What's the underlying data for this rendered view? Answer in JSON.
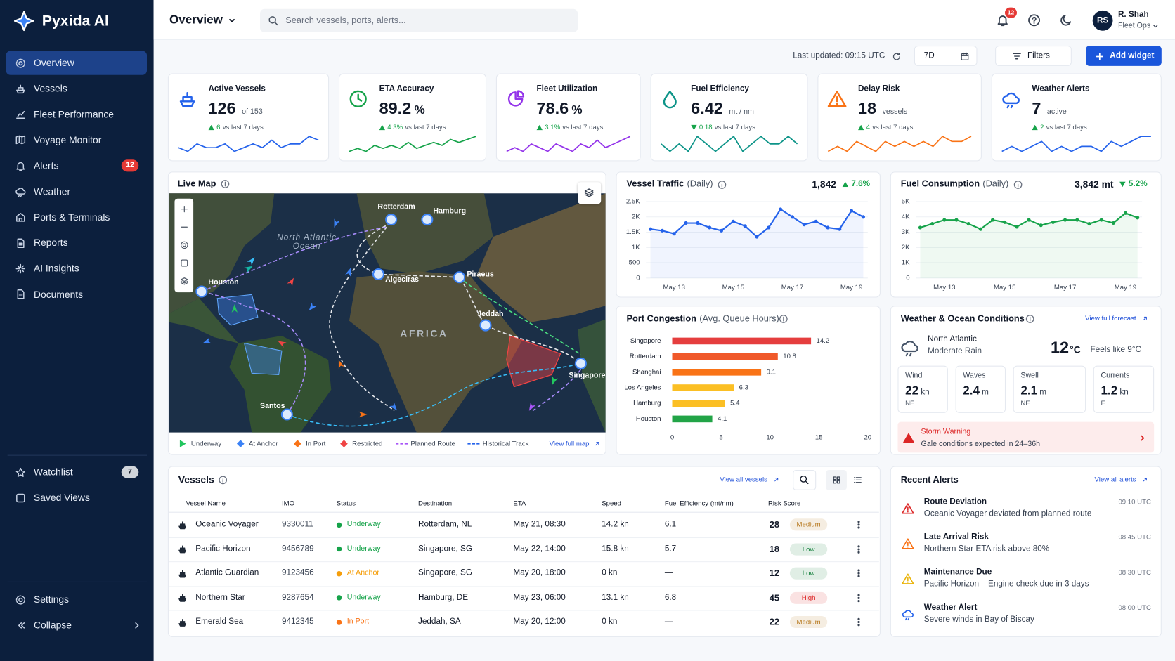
{
  "sidebar": {
    "brand": "Pyxida AI",
    "nav": [
      {
        "label": "Overview",
        "active": true
      },
      {
        "label": "Vessels"
      },
      {
        "label": "Fleet Performance"
      },
      {
        "label": "Voyage Monitor"
      },
      {
        "label": "Alerts",
        "badge": 12
      },
      {
        "label": "Weather"
      },
      {
        "label": "Ports & Terminals"
      },
      {
        "label": "Reports"
      },
      {
        "label": "AI Insights"
      },
      {
        "label": "Documents"
      }
    ],
    "saved": [
      {
        "label": "Watchlist",
        "badge": 7
      },
      {
        "label": "Saved Views"
      }
    ],
    "footer": [
      {
        "label": "Settings"
      },
      {
        "label": "Collapse"
      }
    ]
  },
  "header": {
    "title": "Overview",
    "search_placeholder": "Search vessels, ports, alerts...",
    "notification_count": 12,
    "user_initials": "RS",
    "user_name": "R. Shah",
    "user_role": "Fleet Ops"
  },
  "toolbar": {
    "last_updated": "Last updated: 09:15 UTC",
    "range": "7D",
    "filters": "Filters",
    "add_widget": "Add widget"
  },
  "kpis": [
    {
      "title": "Active Vessels",
      "value": 126,
      "unit": "of 153",
      "delta": "6",
      "delta_note": "vs last 7 days",
      "trend": "up",
      "delta_color": "#16a34a",
      "color": "#2563eb",
      "spark": [
        6,
        5,
        7,
        6,
        6,
        7,
        5,
        6,
        7,
        6,
        8,
        6,
        7,
        7,
        9,
        8
      ]
    },
    {
      "title": "ETA Accuracy",
      "value": 89.2,
      "unit": "%",
      "delta": "4.3%",
      "delta_note": "vs last 7 days",
      "trend": "up",
      "delta_color": "#16a34a",
      "color": "#16a34a",
      "spark": [
        4,
        5,
        4,
        6,
        5,
        6,
        5,
        7,
        5,
        6,
        7,
        6,
        8,
        7,
        8,
        9
      ]
    },
    {
      "title": "Fleet Utilization",
      "value": 78.6,
      "unit": "%",
      "delta": "3.1%",
      "delta_note": "vs last 7 days",
      "trend": "up",
      "delta_color": "#16a34a",
      "color": "#9333ea",
      "spark": [
        5,
        6,
        5,
        7,
        6,
        5,
        7,
        6,
        5,
        7,
        6,
        8,
        6,
        7,
        8,
        9
      ]
    },
    {
      "title": "Fuel Efficiency",
      "value": 6.42,
      "unit": "mt / nm",
      "delta": "0.18",
      "delta_note": "vs last 7 days",
      "trend": "down",
      "delta_color": "#16a34a",
      "color": "#0d9488",
      "spark": [
        6,
        5,
        6,
        5,
        7,
        6,
        5,
        6,
        7,
        5,
        6,
        7,
        6,
        6,
        7,
        6
      ]
    },
    {
      "title": "Delay Risk",
      "value": 18,
      "unit": "vessels",
      "delta": "4",
      "delta_note": "vs last 7 days",
      "trend": "up",
      "delta_color": "#16a34a",
      "color": "#f97316",
      "spark": [
        4,
        5,
        4,
        6,
        5,
        4,
        6,
        5,
        6,
        5,
        6,
        5,
        7,
        6,
        6,
        7
      ]
    },
    {
      "title": "Weather Alerts",
      "value": 7,
      "unit": "active",
      "delta": "2",
      "delta_note": "vs last 7 days",
      "trend": "up",
      "delta_color": "#16a34a",
      "color": "#2563eb",
      "spark": [
        5,
        6,
        5,
        6,
        7,
        5,
        6,
        5,
        6,
        6,
        5,
        7,
        6,
        7,
        8,
        8
      ]
    }
  ],
  "live_map": {
    "title": "Live Map",
    "ocean_label": "North Atlantic Ocean",
    "continent_label": "AFRICA",
    "ports": [
      "Rotterdam",
      "Hamburg",
      "Houston",
      "Algeciras",
      "Piraeus",
      "Jeddah",
      "Singapore",
      "Santos"
    ],
    "legend": [
      {
        "label": "Underway",
        "color": "#22c55e"
      },
      {
        "label": "At Anchor",
        "color": "#3b82f6"
      },
      {
        "label": "In Port",
        "color": "#f97316"
      },
      {
        "label": "Restricted",
        "color": "#ef4444"
      },
      {
        "label": "Planned Route",
        "color": "#a855f7"
      },
      {
        "label": "Historical Track",
        "color": "#2563eb"
      }
    ],
    "link": "View full map"
  },
  "chart_data": [
    {
      "type": "line",
      "title": "Vessel Traffic",
      "subtitle": "(Daily)",
      "total": "1,842",
      "delta": "7.6%",
      "trend": "up",
      "delta_color": "#16a34a",
      "color": "#2563eb",
      "categories": [
        null,
        null,
        "May 13",
        null,
        null,
        null,
        null,
        "May 15",
        null,
        null,
        null,
        null,
        "May 17",
        null,
        null,
        null,
        null,
        "May 19",
        null
      ],
      "values": [
        1600,
        1550,
        1450,
        1800,
        1800,
        1650,
        1550,
        1850,
        1700,
        1350,
        1650,
        2250,
        2000,
        1750,
        1850,
        1650,
        1600,
        2200,
        2000
      ],
      "ylim": [
        0,
        2500
      ],
      "yticks": [
        0,
        500,
        {
          "value": 1000,
          "label": "1K"
        },
        {
          "value": 1500,
          "label": "1.5K"
        },
        {
          "value": 2000,
          "label": "2K"
        },
        {
          "value": 2500,
          "label": "2.5K"
        }
      ],
      "grid": true
    },
    {
      "type": "line",
      "title": "Fuel Consumption",
      "subtitle": "(Daily)",
      "total": "3,842 mt",
      "delta": "5.2%",
      "trend": "down",
      "delta_color": "#16a34a",
      "color": "#16a34a",
      "categories": [
        null,
        null,
        "May 13",
        null,
        null,
        null,
        null,
        "May 15",
        null,
        null,
        null,
        null,
        "May 17",
        null,
        null,
        null,
        null,
        "May 19",
        null
      ],
      "values": [
        3300,
        3550,
        3800,
        3800,
        3550,
        3200,
        3800,
        3650,
        3350,
        3800,
        3450,
        3650,
        3800,
        3800,
        3550,
        3800,
        3600,
        4250,
        3950
      ],
      "ylim": [
        0,
        5000
      ],
      "yticks": [
        0,
        {
          "value": 1000,
          "label": "1K"
        },
        {
          "value": 2000,
          "label": "2K"
        },
        {
          "value": 3000,
          "label": "3K"
        },
        {
          "value": 4000,
          "label": "4K"
        },
        {
          "value": 5000,
          "label": "5K"
        }
      ],
      "grid": true
    },
    {
      "type": "bar",
      "orientation": "horizontal",
      "title": "Port Congestion",
      "subtitle": "(Avg. Queue Hours)",
      "categories": [
        "Singapore",
        "Rotterdam",
        "Shanghai",
        "Los Angeles",
        "Hamburg",
        "Houston"
      ],
      "values": [
        14.2,
        10.8,
        9.1,
        6.3,
        5.4,
        4.1
      ],
      "colors": [
        "#e53e3e",
        "#f0592a",
        "#f97316",
        "#fbbf24",
        "#fbbf24",
        "#22a447"
      ],
      "xlim": [
        0,
        20
      ],
      "xticks": [
        0,
        5,
        10,
        15,
        20
      ]
    }
  ],
  "weather": {
    "title": "Weather & Ocean Conditions",
    "link": "View full forecast",
    "location": "North Atlantic",
    "condition": "Moderate Rain",
    "temp": 12,
    "temp_unit": "°C",
    "feels_like": "Feels like 9°C",
    "tiles": [
      {
        "label": "Wind",
        "value": 22,
        "unit": "kn",
        "dir": "NE"
      },
      {
        "label": "Waves",
        "value": 2.4,
        "unit": "m"
      },
      {
        "label": "Swell",
        "value": 2.1,
        "unit": "m",
        "dir": "NE"
      },
      {
        "label": "Currents",
        "value": 1.2,
        "unit": "kn",
        "dir": "E"
      }
    ],
    "warning_title": "Storm Warning",
    "warning_text": "Gale conditions expected in 24–36h"
  },
  "vessels": {
    "title": "Vessels",
    "link": "View all vessels",
    "columns": [
      "Vessel Name",
      "IMO",
      "Status",
      "Destination",
      "ETA",
      "Speed",
      "Fuel Efficiency (mt/nm)",
      "Risk Score"
    ],
    "rows": [
      {
        "name": "Oceanic Voyager",
        "imo": "9330011",
        "status": "Underway",
        "status_color": "#16a34a",
        "destination": "Rotterdam, NL",
        "eta": "May 21, 08:30",
        "speed": "14.2 kn",
        "fuel": "6.1",
        "risk": 28,
        "risk_label": "Medium",
        "risk_color": "#b7791f"
      },
      {
        "name": "Pacific Horizon",
        "imo": "9456789",
        "status": "Underway",
        "status_color": "#16a34a",
        "destination": "Singapore, SG",
        "eta": "May 22, 14:00",
        "speed": "15.8 kn",
        "fuel": "5.7",
        "risk": 18,
        "risk_label": "Low",
        "risk_color": "#15803d"
      },
      {
        "name": "Atlantic Guardian",
        "imo": "9123456",
        "status": "At Anchor",
        "status_color": "#f59e0b",
        "destination": "Singapore, SG",
        "eta": "May 20, 18:00",
        "speed": "0 kn",
        "fuel": "—",
        "risk": 12,
        "risk_label": "Low",
        "risk_color": "#15803d"
      },
      {
        "name": "Northern Star",
        "imo": "9287654",
        "status": "Underway",
        "status_color": "#16a34a",
        "destination": "Hamburg, DE",
        "eta": "May 23, 06:00",
        "speed": "13.1 kn",
        "fuel": "6.8",
        "risk": 45,
        "risk_label": "High",
        "risk_color": "#dc2626"
      },
      {
        "name": "Emerald Sea",
        "imo": "9412345",
        "status": "In Port",
        "status_color": "#f97316",
        "destination": "Jeddah, SA",
        "eta": "May 20, 12:00",
        "speed": "0 kn",
        "fuel": "—",
        "risk": 22,
        "risk_label": "Medium",
        "risk_color": "#b7791f"
      }
    ]
  },
  "alerts": {
    "title": "Recent Alerts",
    "link": "View all alerts",
    "items": [
      {
        "title": "Route Deviation",
        "text": "Oceanic Voyager deviated from planned route",
        "time": "09:10 UTC",
        "color": "#dc2626",
        "icon": "warn"
      },
      {
        "title": "Late Arrival Risk",
        "text": "Northern Star ETA risk above 80%",
        "time": "08:45 UTC",
        "color": "#f97316",
        "icon": "warn"
      },
      {
        "title": "Maintenance Due",
        "text": "Pacific Horizon – Engine check due in 3 days",
        "time": "08:30 UTC",
        "color": "#eab308",
        "icon": "warn"
      },
      {
        "title": "Weather Alert",
        "text": "Severe winds in Bay of Biscay",
        "time": "08:00 UTC",
        "color": "#2563eb",
        "icon": "cloud"
      }
    ]
  }
}
